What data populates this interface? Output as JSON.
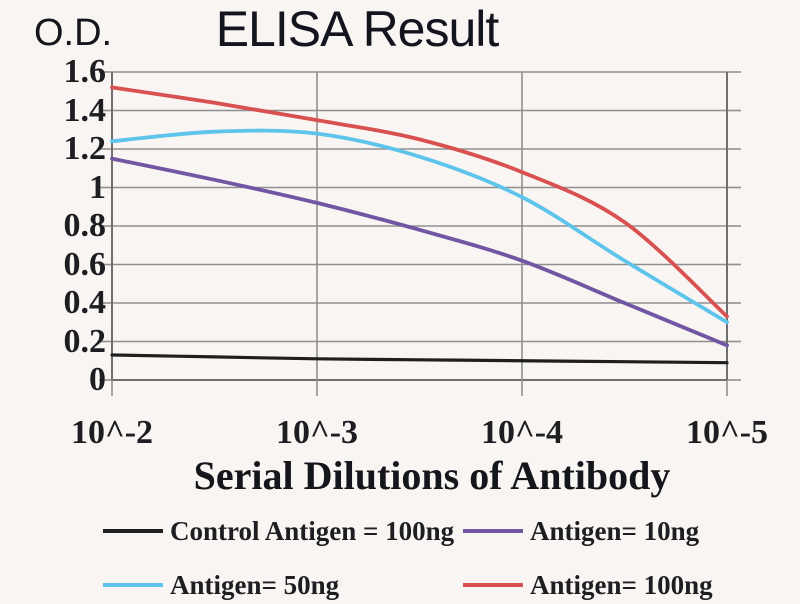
{
  "chart_data": {
    "type": "line",
    "title": "ELISA Result",
    "ylabel": "O.D.",
    "xlabel": "Serial Dilutions of Antibody",
    "x_tick_labels": [
      "10^-2",
      "10^-3",
      "10^-4",
      "10^-5"
    ],
    "x_tick_values": [
      -2,
      -3,
      -4,
      -5
    ],
    "y_tick_labels": [
      "1.6",
      "1.4",
      "1.2",
      "1",
      "0.8",
      "0.6",
      "0.4",
      "0.2",
      "0"
    ],
    "y_tick_values": [
      1.6,
      1.4,
      1.2,
      1.0,
      0.8,
      0.6,
      0.4,
      0.2,
      0
    ],
    "ylim": [
      0,
      1.6
    ],
    "xlim": [
      -2,
      -5
    ],
    "grid": true,
    "legend_position": "bottom",
    "x": [
      -2,
      -2.5,
      -3,
      -3.5,
      -4,
      -4.5,
      -5
    ],
    "series": [
      {
        "name": "Control Antigen = 100ng",
        "color": "#1f1f1f",
        "values": [
          0.13,
          0.12,
          0.11,
          0.105,
          0.1,
          0.095,
          0.09
        ]
      },
      {
        "name": "Antigen= 10ng",
        "color": "#7156a3",
        "values": [
          1.15,
          1.04,
          0.92,
          0.78,
          0.62,
          0.4,
          0.18
        ]
      },
      {
        "name": "Antigen= 50ng",
        "color": "#5ec4ec",
        "values": [
          1.24,
          1.29,
          1.28,
          1.16,
          0.95,
          0.62,
          0.3
        ]
      },
      {
        "name": "Antigen= 100ng",
        "color": "#d85050",
        "values": [
          1.52,
          1.44,
          1.35,
          1.25,
          1.08,
          0.82,
          0.33
        ]
      }
    ],
    "colors": {
      "grid": "#8f8f8f",
      "axis": "#6f6f6f",
      "text": "#1d1d22",
      "background": "#f8f5f2"
    }
  }
}
